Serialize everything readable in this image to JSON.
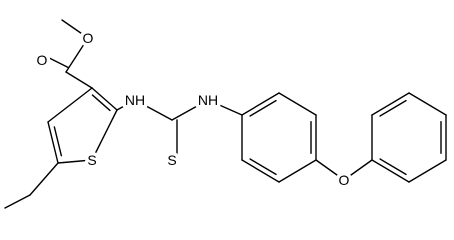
{
  "atoms": [
    {
      "label": "O"
    },
    {
      "label": "O"
    },
    {
      "label": "S"
    },
    {
      "label": "NH"
    },
    {
      "label": "NH"
    },
    {
      "label": "S"
    },
    {
      "label": "O"
    }
  ]
}
